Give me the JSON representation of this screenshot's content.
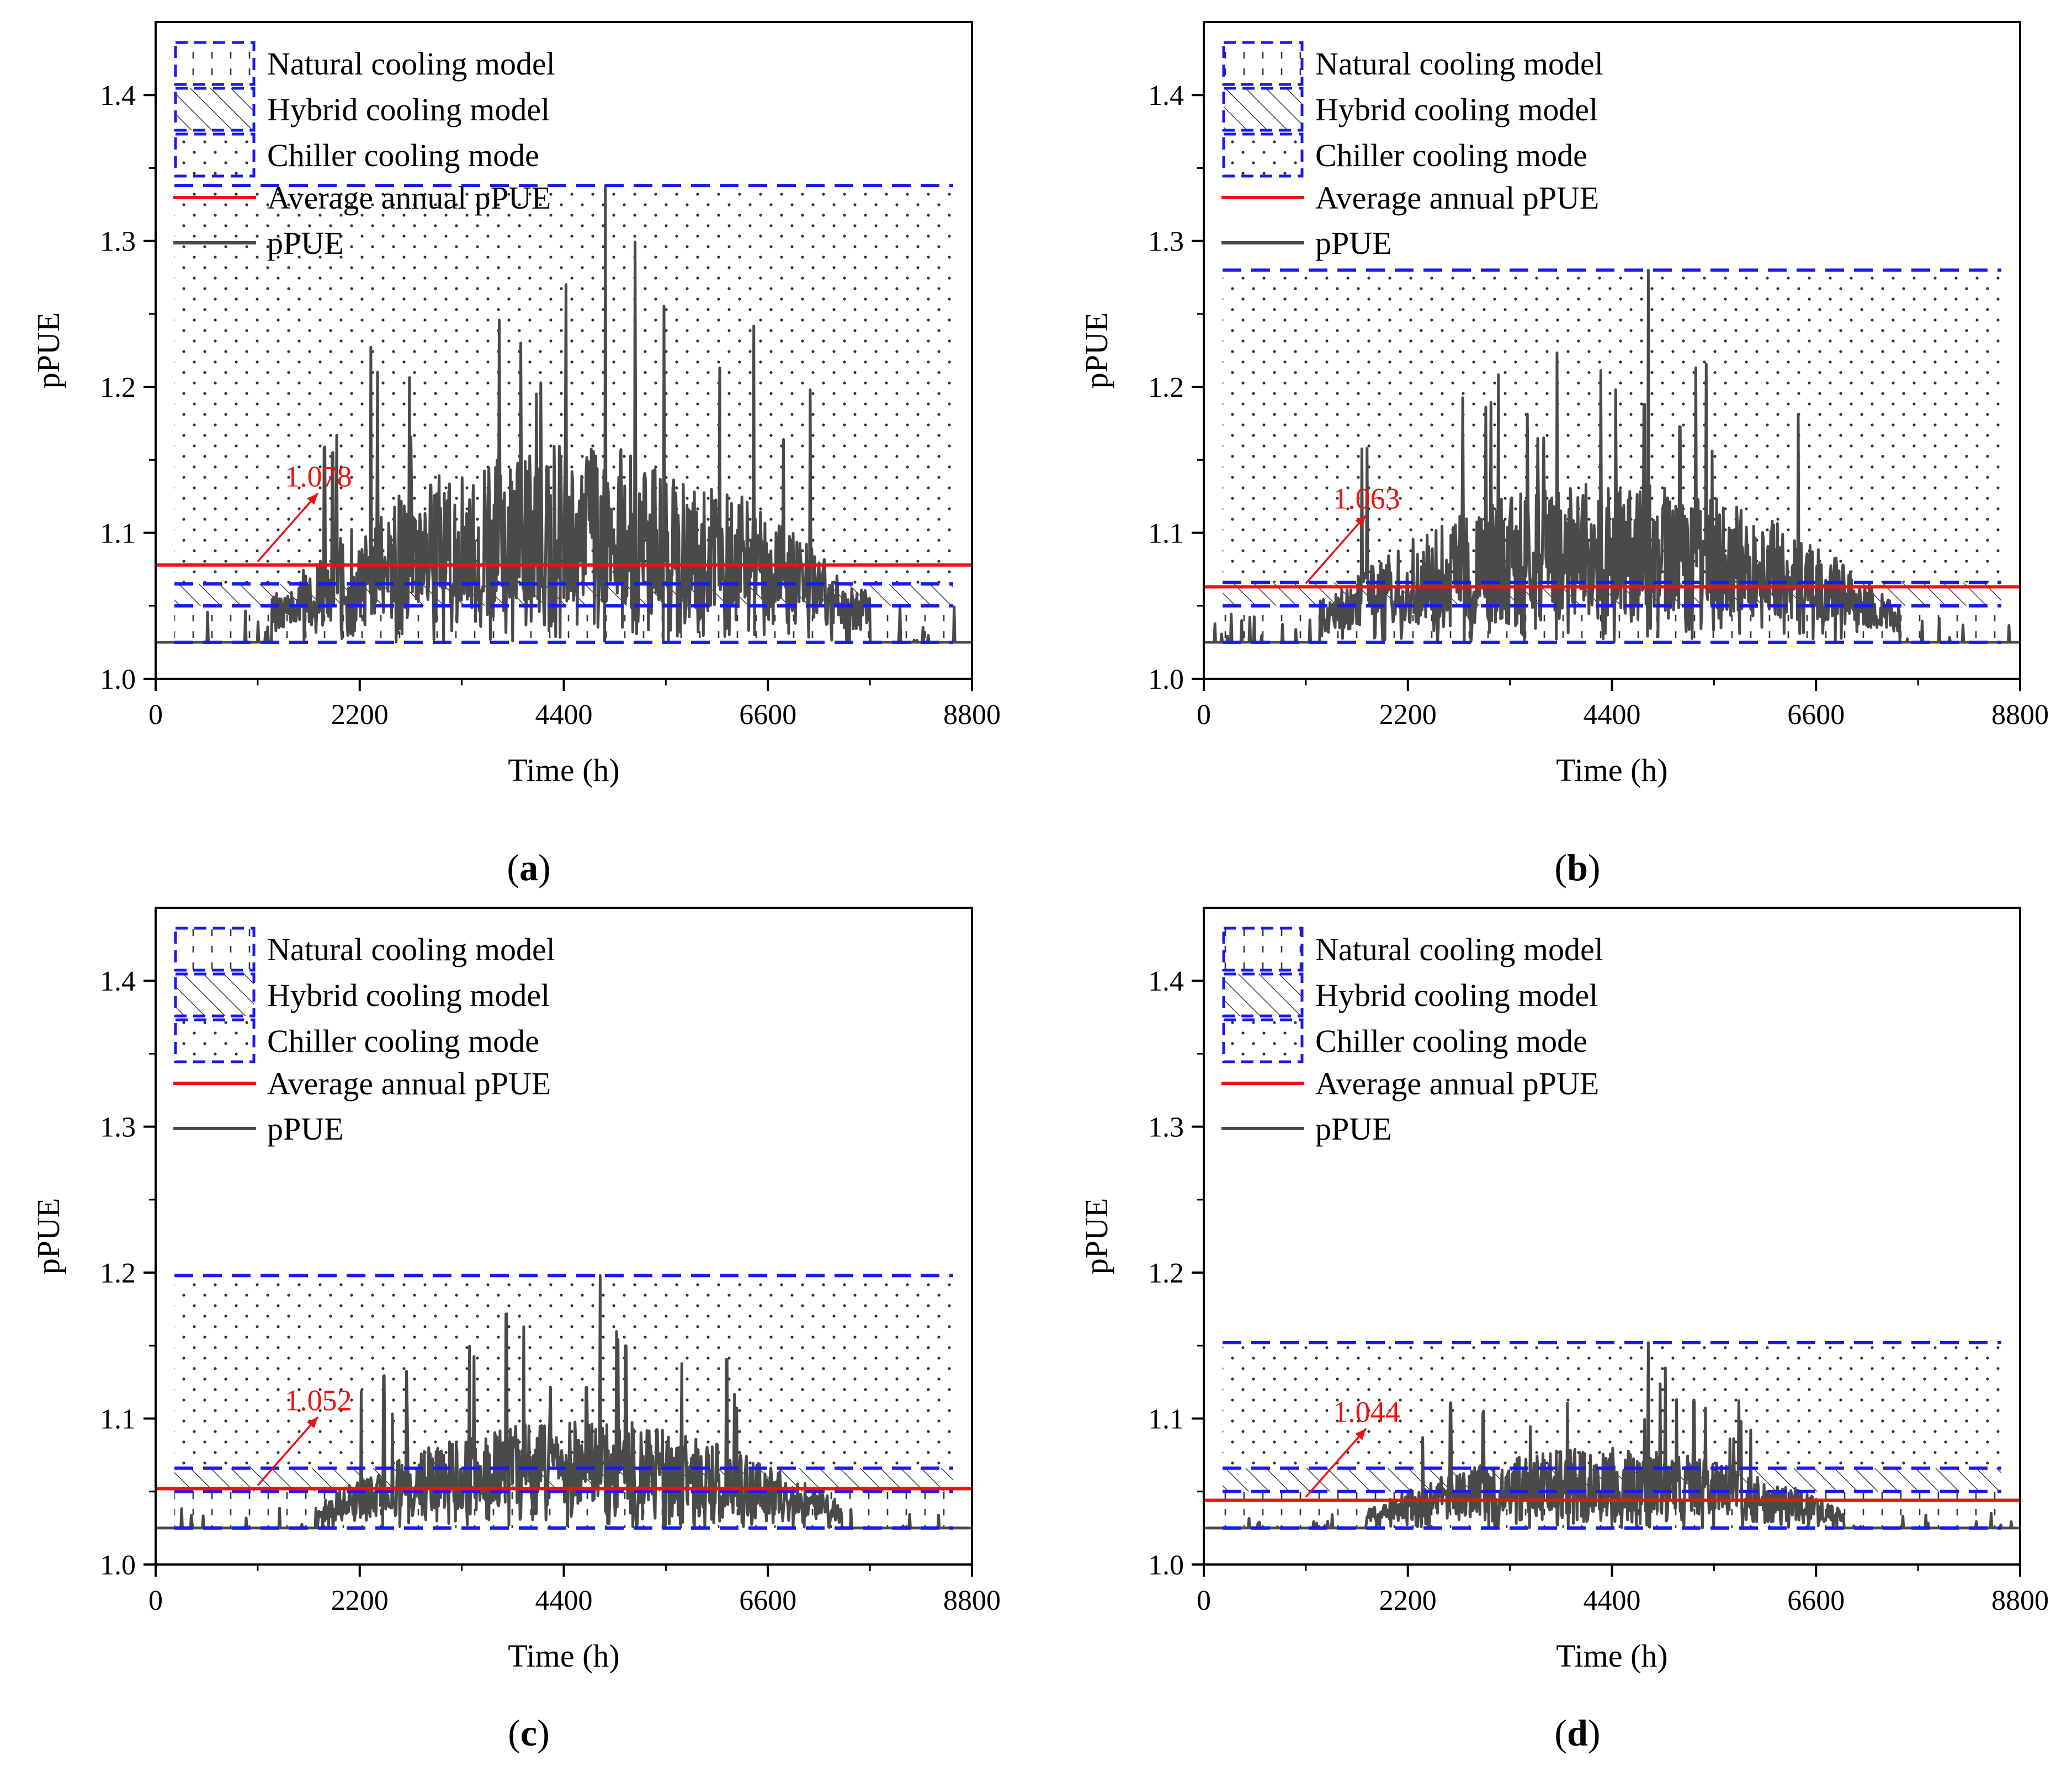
{
  "figure": {
    "colors": {
      "boundary": "#1a1aee",
      "average": "#ee1111",
      "ppue": "#4a4a4a",
      "annotation": "#ee1111",
      "hatch": "#222222",
      "dots": "#333333"
    }
  },
  "chart_data": [
    {
      "type": "line",
      "panel": "a",
      "caption_letter": "a",
      "xlabel": "Time (h)",
      "ylabel": "pPUE",
      "xlim": [
        0,
        8800
      ],
      "ylim": [
        1.0,
        1.45
      ],
      "xticks": [
        0,
        2200,
        4400,
        6600,
        8800
      ],
      "yticks": [
        1.0,
        1.1,
        1.2,
        1.3,
        1.4
      ],
      "legend": [
        "Natural cooling model",
        "Hybrid cooling model",
        "Chiller cooling mode",
        "Average annual pPUE",
        "pPUE"
      ],
      "regions": {
        "natural": [
          1.025,
          1.05
        ],
        "hybrid": [
          1.05,
          1.065
        ],
        "chiller": [
          1.065,
          1.338
        ]
      },
      "average_ppue": 1.078,
      "annotation": "1.078",
      "ppue_profile": {
        "min": 1.025,
        "max": 1.338,
        "peak_hour": 4850,
        "active_start": 1250,
        "active_end": 7700
      }
    },
    {
      "type": "line",
      "panel": "b",
      "caption_letter": "b",
      "xlabel": "Time (h)",
      "ylabel": "pPUE",
      "xlim": [
        0,
        8800
      ],
      "ylim": [
        1.0,
        1.45
      ],
      "xticks": [
        0,
        2200,
        4400,
        6600,
        8800
      ],
      "yticks": [
        1.0,
        1.1,
        1.2,
        1.3,
        1.4
      ],
      "legend": [
        "Natural cooling model",
        "Hybrid cooling model",
        "Chiller cooling mode",
        "Average annual pPUE",
        "pPUE"
      ],
      "regions": {
        "natural": [
          1.025,
          1.05
        ],
        "hybrid": [
          1.05,
          1.066
        ],
        "chiller": [
          1.066,
          1.28
        ]
      },
      "average_ppue": 1.063,
      "annotation": "1.063",
      "ppue_profile": {
        "min": 1.025,
        "max": 1.28,
        "peak_hour": 4790,
        "active_start": 1250,
        "active_end": 7500
      }
    },
    {
      "type": "line",
      "panel": "c",
      "caption_letter": "c",
      "xlabel": "Time (h)",
      "ylabel": "pPUE",
      "xlim": [
        0,
        8800
      ],
      "ylim": [
        1.0,
        1.45
      ],
      "xticks": [
        0,
        2200,
        4400,
        6600,
        8800
      ],
      "yticks": [
        1.0,
        1.1,
        1.2,
        1.3,
        1.4
      ],
      "legend": [
        "Natural cooling model",
        "Hybrid cooling model",
        "Chiller cooling mode",
        "Average annual pPUE",
        "pPUE"
      ],
      "regions": {
        "natural": [
          1.025,
          1.05
        ],
        "hybrid": [
          1.05,
          1.066
        ],
        "chiller": [
          1.066,
          1.198
        ]
      },
      "average_ppue": 1.052,
      "annotation": "1.052",
      "ppue_profile": {
        "min": 1.025,
        "max": 1.198,
        "peak_hour": 4790,
        "active_start": 1750,
        "active_end": 7400
      }
    },
    {
      "type": "line",
      "panel": "d",
      "caption_letter": "d",
      "xlabel": "Time (h)",
      "ylabel": "pPUE",
      "xlim": [
        0,
        8800
      ],
      "ylim": [
        1.0,
        1.45
      ],
      "xticks": [
        0,
        2200,
        4400,
        6600,
        8800
      ],
      "yticks": [
        1.0,
        1.1,
        1.2,
        1.3,
        1.4
      ],
      "legend": [
        "Natural cooling model",
        "Hybrid cooling model",
        "Chiller cooling mode",
        "Average annual pPUE",
        "pPUE"
      ],
      "regions": {
        "natural": [
          1.025,
          1.05
        ],
        "hybrid": [
          1.05,
          1.066
        ],
        "chiller": [
          1.066,
          1.152
        ]
      },
      "average_ppue": 1.044,
      "annotation": "1.044",
      "ppue_profile": {
        "min": 1.025,
        "max": 1.152,
        "peak_hour": 4790,
        "active_start": 1750,
        "active_end": 6900
      }
    }
  ]
}
